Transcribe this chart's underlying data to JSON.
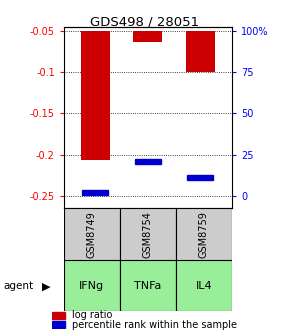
{
  "title": "GDS498 / 28051",
  "samples": [
    "GSM8749",
    "GSM8754",
    "GSM8759"
  ],
  "agents": [
    "IFNg",
    "TNFa",
    "IL4"
  ],
  "log_ratios": [
    -0.207,
    -0.063,
    -0.1
  ],
  "percentile_ranks": [
    2.0,
    21.0,
    11.0
  ],
  "ymin": -0.265,
  "ymax": -0.045,
  "yticks_left": [
    -0.25,
    -0.2,
    -0.15,
    -0.1,
    -0.05
  ],
  "ytick_labels_left": [
    "-0.25",
    "-0.2",
    "-0.15",
    "-0.1",
    "-0.05"
  ],
  "yticks_right_pct": [
    0,
    25,
    50,
    75,
    100
  ],
  "ytick_labels_right": [
    "0",
    "25",
    "50",
    "75",
    "100%"
  ],
  "bar_color": "#cc0000",
  "percentile_color": "#0000cc",
  "sample_box_color": "#cccccc",
  "agent_color": "#99ee99",
  "legend_labels": [
    "log ratio",
    "percentile rank within the sample"
  ],
  "bar_width": 0.55,
  "baseline": -0.05
}
